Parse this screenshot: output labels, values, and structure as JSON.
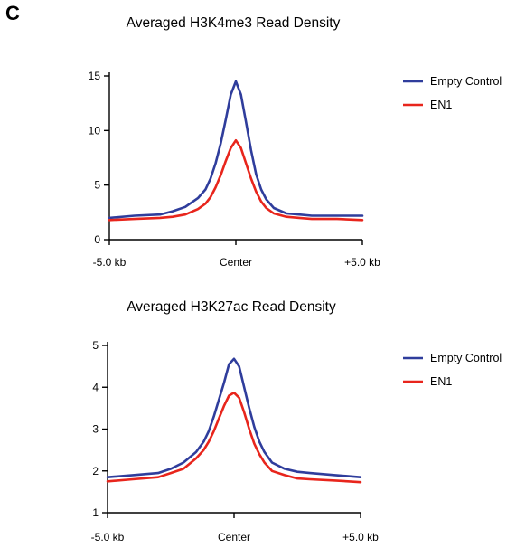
{
  "panel_label": "C",
  "colors": {
    "empty_control": "#2f3d9c",
    "en1": "#e8251c"
  },
  "chart_data": [
    {
      "type": "line",
      "title": "Averaged H3K4me3 Read Density",
      "xlabel": "",
      "ylabel": "",
      "x_ticks": [
        "-5.0 kb",
        "Center",
        "+5.0 kb"
      ],
      "xlim": [
        -5,
        5
      ],
      "ylim": [
        0,
        15
      ],
      "y_ticks": [
        0,
        5,
        10,
        15
      ],
      "grid": false,
      "legend": "top-right",
      "series": [
        {
          "name": "Empty Control",
          "color": "#2f3d9c",
          "x": [
            -5,
            -4,
            -3,
            -2.5,
            -2,
            -1.5,
            -1.2,
            -1,
            -0.8,
            -0.6,
            -0.4,
            -0.2,
            0,
            0.2,
            0.4,
            0.6,
            0.8,
            1,
            1.2,
            1.5,
            2,
            2.5,
            3,
            4,
            5
          ],
          "y": [
            2.0,
            2.2,
            2.3,
            2.6,
            3.0,
            3.8,
            4.6,
            5.6,
            7.0,
            8.8,
            11.0,
            13.3,
            14.5,
            13.3,
            10.8,
            8.2,
            6.0,
            4.6,
            3.7,
            2.9,
            2.4,
            2.3,
            2.2,
            2.2,
            2.2
          ]
        },
        {
          "name": "EN1",
          "color": "#e8251c",
          "x": [
            -5,
            -4,
            -3,
            -2.5,
            -2,
            -1.5,
            -1.2,
            -1,
            -0.8,
            -0.6,
            -0.4,
            -0.2,
            0,
            0.2,
            0.4,
            0.6,
            0.8,
            1,
            1.2,
            1.5,
            2,
            2.5,
            3,
            4,
            5
          ],
          "y": [
            1.8,
            1.9,
            2.0,
            2.1,
            2.3,
            2.8,
            3.3,
            3.9,
            4.8,
            5.9,
            7.2,
            8.4,
            9.1,
            8.4,
            7.0,
            5.6,
            4.4,
            3.5,
            2.9,
            2.4,
            2.1,
            2.0,
            1.9,
            1.9,
            1.8
          ]
        }
      ]
    },
    {
      "type": "line",
      "title": "Averaged H3K27ac Read Density",
      "xlabel": "",
      "ylabel": "",
      "x_ticks": [
        "-5.0 kb",
        "Center",
        "+5.0 kb"
      ],
      "xlim": [
        -5,
        5
      ],
      "ylim": [
        1,
        5
      ],
      "y_ticks": [
        1,
        2,
        3,
        4,
        5
      ],
      "grid": false,
      "legend": "top-right",
      "series": [
        {
          "name": "Empty Control",
          "color": "#2f3d9c",
          "x": [
            -5,
            -4,
            -3,
            -2.5,
            -2,
            -1.5,
            -1.2,
            -1,
            -0.8,
            -0.6,
            -0.4,
            -0.2,
            0,
            0.2,
            0.4,
            0.6,
            0.8,
            1,
            1.2,
            1.5,
            2,
            2.5,
            3,
            4,
            5
          ],
          "y": [
            1.85,
            1.9,
            1.95,
            2.05,
            2.2,
            2.45,
            2.7,
            2.95,
            3.3,
            3.7,
            4.1,
            4.55,
            4.68,
            4.5,
            4.0,
            3.5,
            3.05,
            2.7,
            2.45,
            2.2,
            2.05,
            1.98,
            1.95,
            1.9,
            1.85
          ]
        },
        {
          "name": "EN1",
          "color": "#e8251c",
          "x": [
            -5,
            -4,
            -3,
            -2.5,
            -2,
            -1.5,
            -1.2,
            -1,
            -0.8,
            -0.6,
            -0.4,
            -0.2,
            0,
            0.2,
            0.4,
            0.6,
            0.8,
            1,
            1.2,
            1.5,
            2,
            2.5,
            3,
            4,
            5
          ],
          "y": [
            1.75,
            1.8,
            1.85,
            1.95,
            2.05,
            2.3,
            2.5,
            2.7,
            2.95,
            3.25,
            3.55,
            3.8,
            3.87,
            3.75,
            3.4,
            3.0,
            2.65,
            2.4,
            2.2,
            2.0,
            1.9,
            1.82,
            1.8,
            1.77,
            1.73
          ]
        }
      ]
    }
  ]
}
